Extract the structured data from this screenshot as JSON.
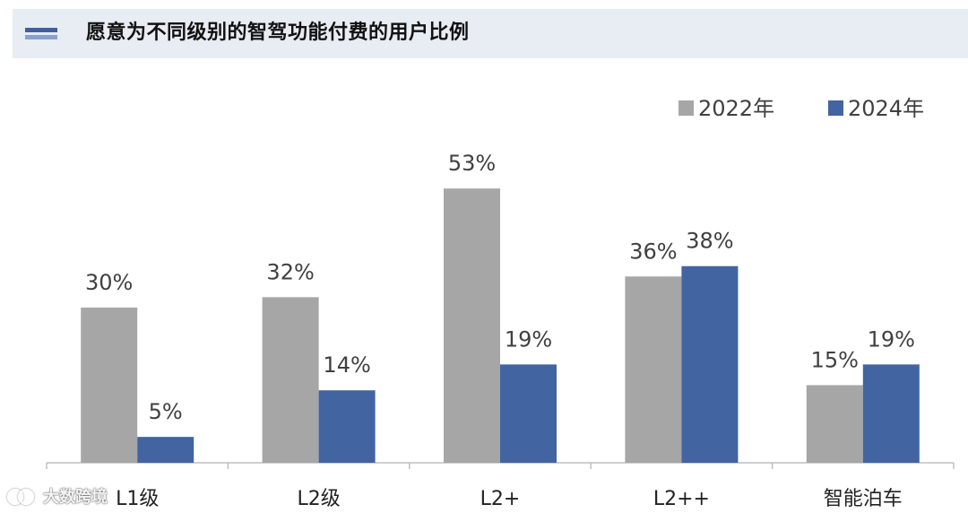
{
  "header": {
    "title": "愿意为不同级别的智驾功能付费的用户比例"
  },
  "chart_data": {
    "type": "bar",
    "categories": [
      "L1级",
      "L2级",
      "L2+",
      "L2++",
      "智能泊车"
    ],
    "series": [
      {
        "name": "2022年",
        "values": [
          30,
          32,
          53,
          36,
          15
        ],
        "color": "#a6a6a6"
      },
      {
        "name": "2024年",
        "values": [
          5,
          14,
          19,
          38,
          19
        ],
        "color": "#4264a1"
      }
    ],
    "value_suffix": "%",
    "ylim": [
      0,
      60
    ],
    "grid": false,
    "legend_position": "top-right"
  },
  "watermark": {
    "text": "大数跨境"
  }
}
